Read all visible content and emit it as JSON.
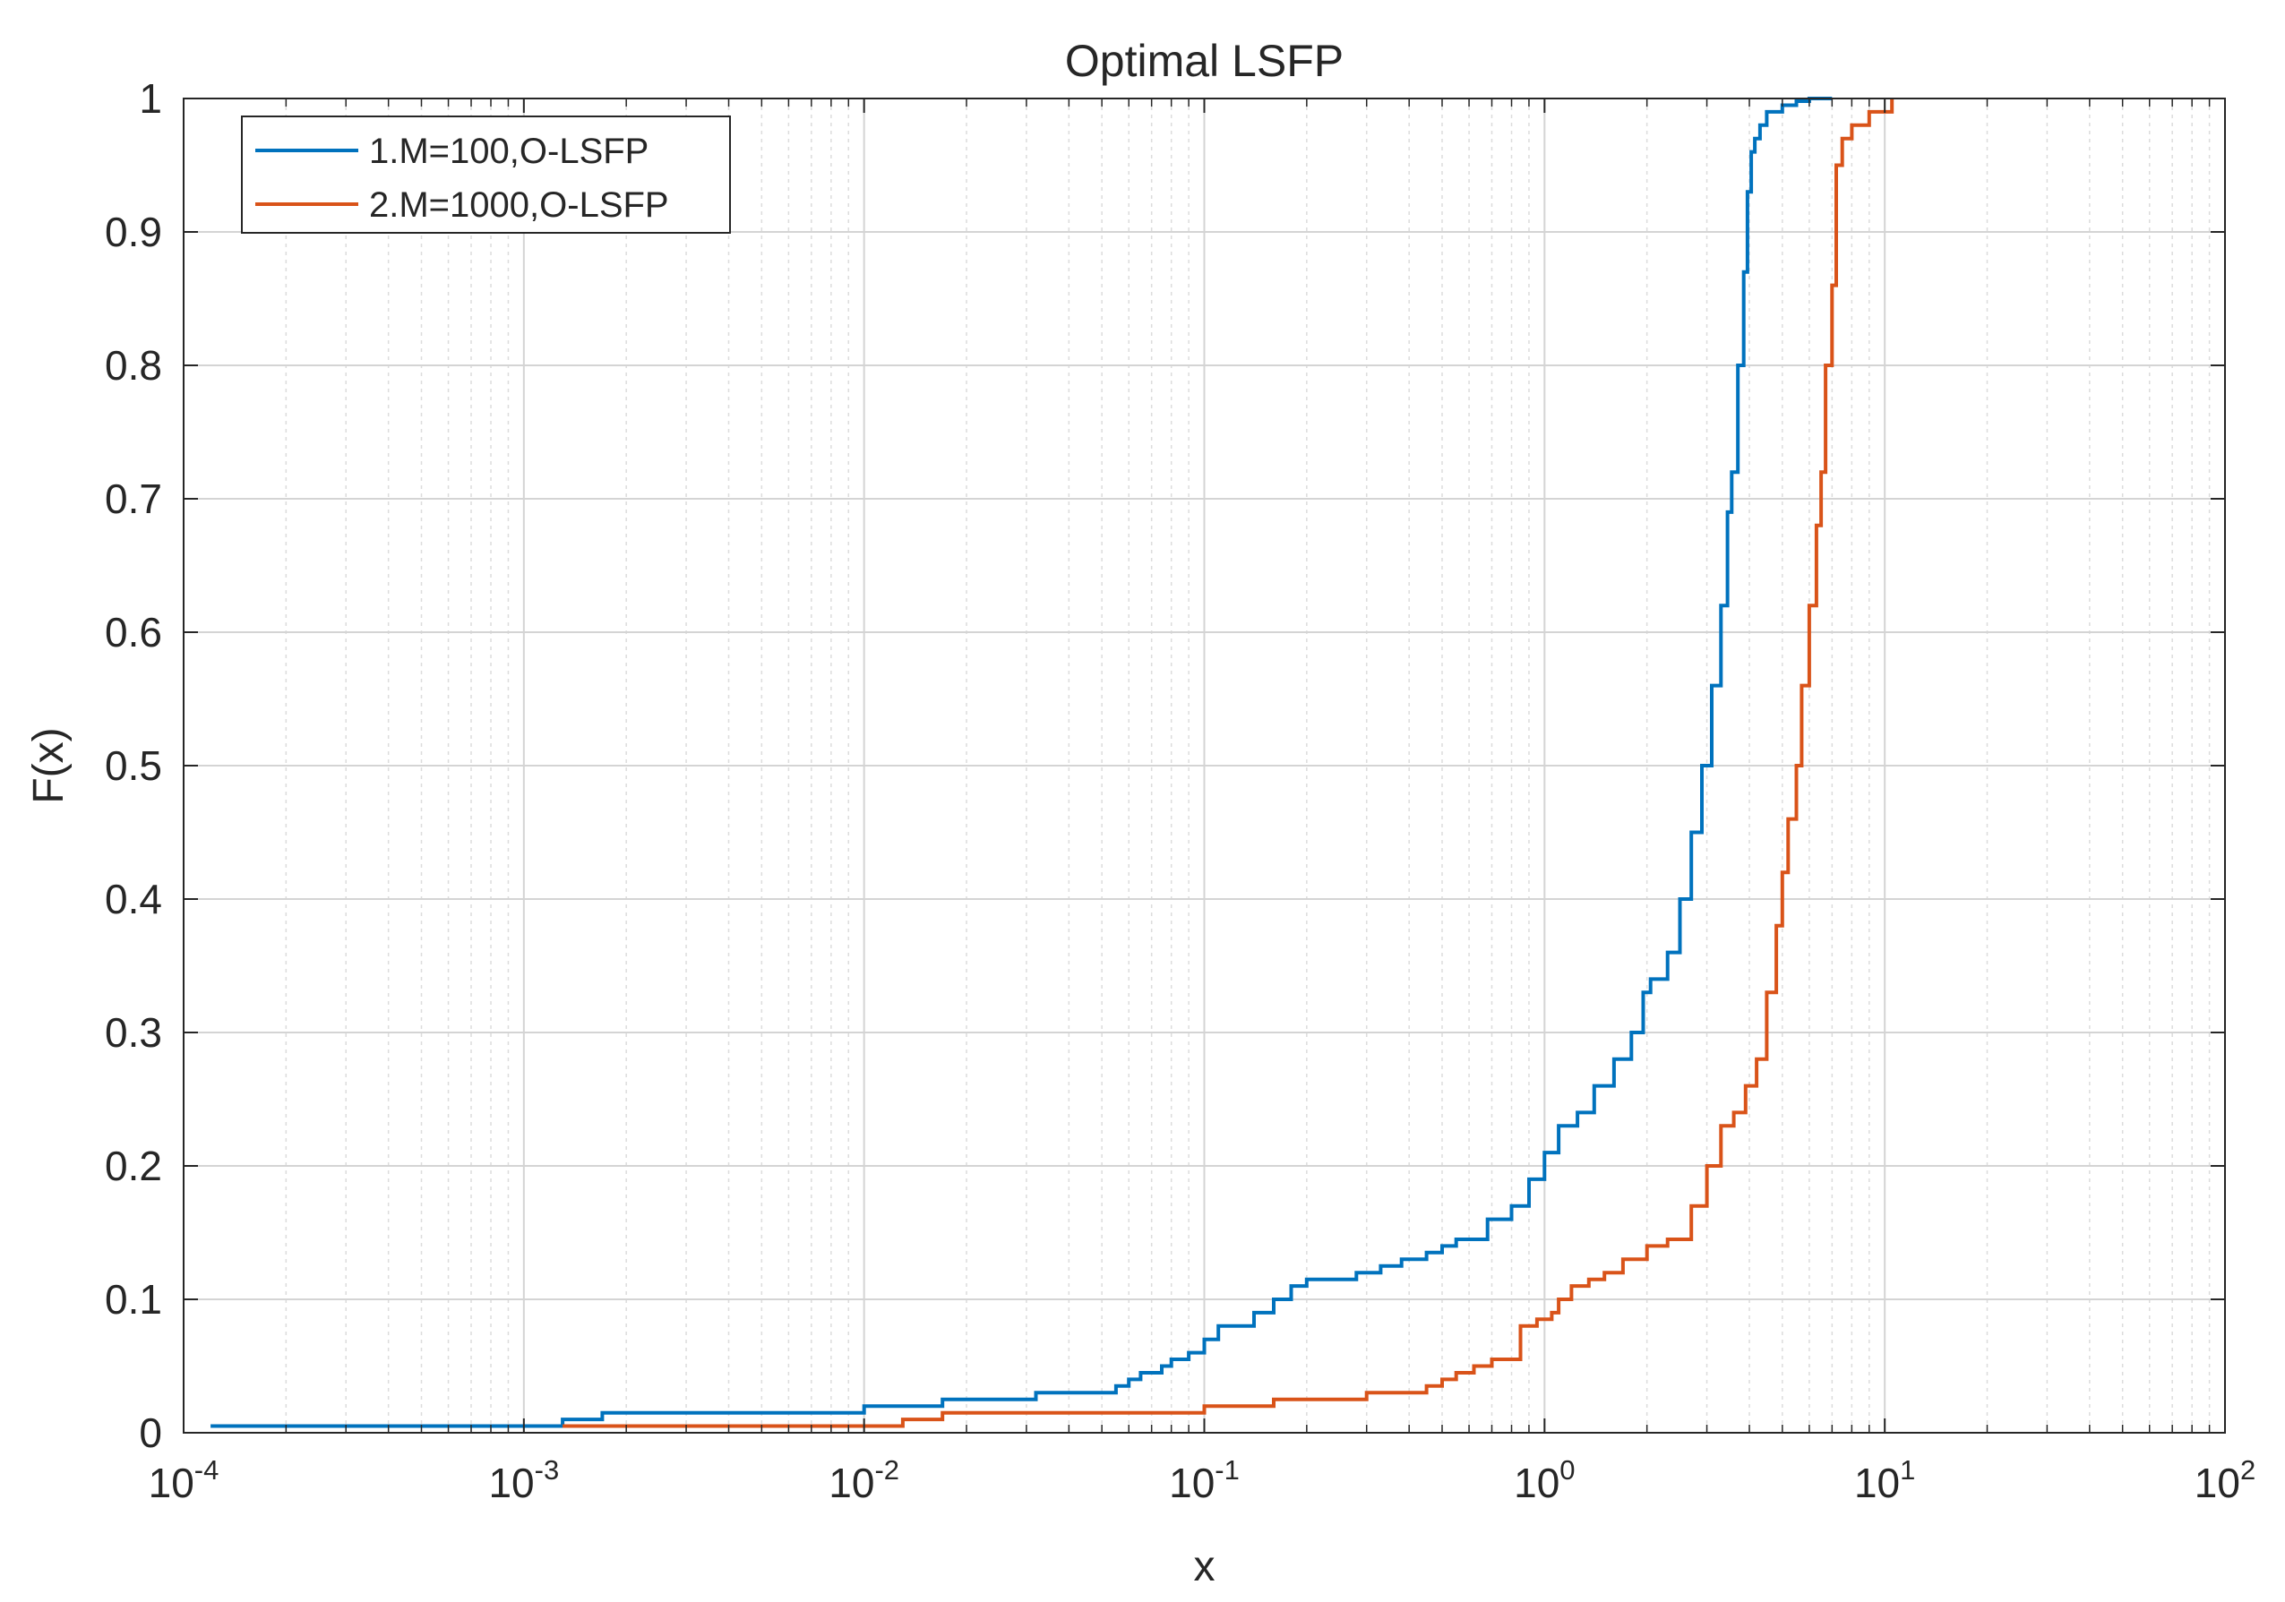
{
  "chart_data": {
    "type": "line",
    "title": "Optimal LSFP",
    "xlabel": "x",
    "ylabel": "F(x)",
    "xscale": "log",
    "xlim": [
      0.0001,
      100
    ],
    "ylim": [
      0,
      1
    ],
    "grid": true,
    "minor_grid": true,
    "legend_position": "top-left",
    "x_ticks": [
      {
        "base": "10",
        "exp": "-4",
        "value": 0.0001
      },
      {
        "base": "10",
        "exp": "-3",
        "value": 0.001
      },
      {
        "base": "10",
        "exp": "-2",
        "value": 0.01
      },
      {
        "base": "10",
        "exp": "-1",
        "value": 0.1
      },
      {
        "base": "10",
        "exp": "0",
        "value": 1
      },
      {
        "base": "10",
        "exp": "1",
        "value": 10
      },
      {
        "base": "10",
        "exp": "2",
        "value": 100
      }
    ],
    "y_ticks": [
      {
        "label": "0",
        "value": 0
      },
      {
        "label": "0.1",
        "value": 0.1
      },
      {
        "label": "0.2",
        "value": 0.2
      },
      {
        "label": "0.3",
        "value": 0.3
      },
      {
        "label": "0.4",
        "value": 0.4
      },
      {
        "label": "0.5",
        "value": 0.5
      },
      {
        "label": "0.6",
        "value": 0.6
      },
      {
        "label": "0.7",
        "value": 0.7
      },
      {
        "label": "0.8",
        "value": 0.8
      },
      {
        "label": "0.9",
        "value": 0.9
      },
      {
        "label": "1",
        "value": 1
      }
    ],
    "series": [
      {
        "name": "1.M=100,O-LSFP",
        "color": "#0072bd",
        "step": true,
        "x": [
          0.00012,
          0.0013,
          0.0017,
          0.01,
          0.017,
          0.032,
          0.055,
          0.06,
          0.065,
          0.075,
          0.08,
          0.09,
          0.1,
          0.11,
          0.14,
          0.16,
          0.18,
          0.2,
          0.28,
          0.33,
          0.38,
          0.45,
          0.5,
          0.55,
          0.68,
          0.8,
          0.9,
          1.0,
          1.1,
          1.25,
          1.4,
          1.6,
          1.8,
          1.95,
          2.05,
          2.3,
          2.5,
          2.7,
          2.9,
          3.1,
          3.3,
          3.45,
          3.55,
          3.7,
          3.85,
          3.95,
          4.05,
          4.15,
          4.3,
          4.5,
          5.0,
          5.5,
          6.0,
          7.0
        ],
        "y": [
          0.005,
          0.01,
          0.015,
          0.02,
          0.025,
          0.03,
          0.035,
          0.04,
          0.045,
          0.05,
          0.055,
          0.06,
          0.07,
          0.08,
          0.09,
          0.1,
          0.11,
          0.115,
          0.12,
          0.125,
          0.13,
          0.135,
          0.14,
          0.145,
          0.16,
          0.17,
          0.19,
          0.21,
          0.23,
          0.24,
          0.26,
          0.28,
          0.3,
          0.33,
          0.34,
          0.36,
          0.4,
          0.45,
          0.5,
          0.56,
          0.62,
          0.69,
          0.72,
          0.8,
          0.87,
          0.93,
          0.96,
          0.97,
          0.98,
          0.99,
          0.995,
          0.998,
          1.0,
          1.0
        ]
      },
      {
        "name": "2.M=1000,O-LSFP",
        "color": "#d95319",
        "step": true,
        "x": [
          0.0013,
          0.013,
          0.017,
          0.1,
          0.16,
          0.3,
          0.45,
          0.5,
          0.55,
          0.62,
          0.7,
          0.85,
          0.95,
          1.05,
          1.1,
          1.2,
          1.35,
          1.5,
          1.7,
          2.0,
          2.3,
          2.7,
          3.0,
          3.3,
          3.6,
          3.9,
          4.2,
          4.5,
          4.8,
          5.0,
          5.2,
          5.5,
          5.7,
          6.0,
          6.3,
          6.5,
          6.7,
          7.0,
          7.2,
          7.5,
          8.0,
          9.0,
          10.5
        ],
        "y": [
          0.005,
          0.01,
          0.015,
          0.02,
          0.025,
          0.03,
          0.035,
          0.04,
          0.045,
          0.05,
          0.055,
          0.08,
          0.085,
          0.09,
          0.1,
          0.11,
          0.115,
          0.12,
          0.13,
          0.14,
          0.145,
          0.17,
          0.2,
          0.23,
          0.24,
          0.26,
          0.28,
          0.33,
          0.38,
          0.42,
          0.46,
          0.5,
          0.56,
          0.62,
          0.68,
          0.72,
          0.8,
          0.86,
          0.95,
          0.97,
          0.98,
          0.99,
          1.0
        ]
      }
    ]
  }
}
